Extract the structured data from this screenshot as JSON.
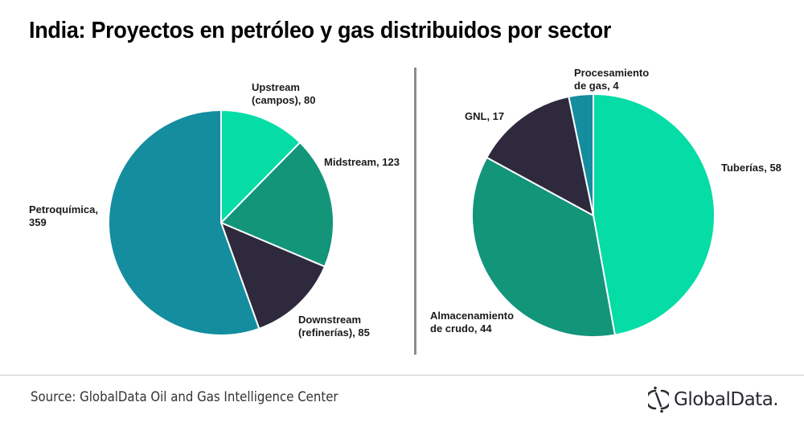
{
  "title": "India: Proyectos en petróleo y gas distribuidos por sector",
  "footer": {
    "source": "Source: GlobalData Oil and Gas Intelligence Center",
    "logo_text": "GlobalData.",
    "logo_icon": "globaldata-logo-icon"
  },
  "colors": {
    "teal_light": "#05dca6",
    "teal_green": "#13957a",
    "dark_navy": "#2e293c",
    "teal_blue": "#148d9f"
  },
  "labels": {
    "left": {
      "upstream_line1": "Upstream",
      "upstream_line2": "(campos), 80",
      "midstream": "Midstream, 123",
      "downstream_line1": "Downstream",
      "downstream_line2": "(refinerías), 85",
      "petroquimica_line1": "Petroquímica,",
      "petroquimica_line2": "359"
    },
    "right": {
      "procesamiento_line1": "Procesamiento",
      "procesamiento_line2": "de gas, 4",
      "gnl": "GNL, 17",
      "tuberias": "Tuberías, 58",
      "almacenamiento_line1": "Almacenamiento",
      "almacenamiento_line2": "de crudo, 44"
    }
  },
  "chart_data": [
    {
      "type": "pie",
      "title": "India: Proyectos en petróleo y gas distribuidos por sector",
      "categories": [
        "Upstream (campos)",
        "Midstream",
        "Downstream (refinerías)",
        "Petroquímica"
      ],
      "values": [
        80,
        123,
        85,
        359
      ],
      "colors": [
        "#05dca6",
        "#13957a",
        "#2e293c",
        "#148d9f"
      ],
      "start_angle": "12 o'clock, clockwise"
    },
    {
      "type": "pie",
      "title": "Midstream breakdown",
      "categories": [
        "Tuberías",
        "Almacenamiento de crudo",
        "GNL",
        "Procesamiento de gas"
      ],
      "values": [
        58,
        44,
        17,
        4
      ],
      "colors": [
        "#05dca6",
        "#13957a",
        "#2e293c",
        "#148d9f"
      ],
      "start_angle": "12 o'clock, clockwise"
    }
  ]
}
